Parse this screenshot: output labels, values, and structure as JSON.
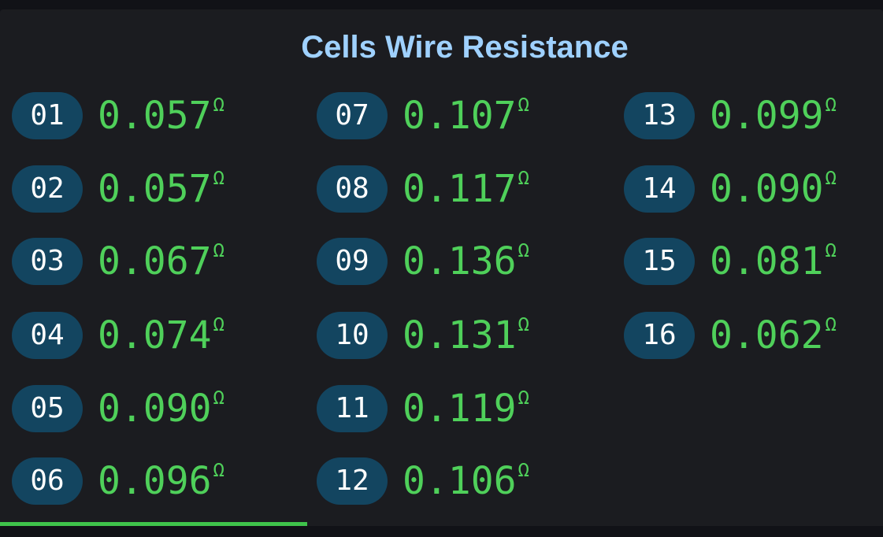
{
  "panel": {
    "title": "Cells Wire Resistance"
  },
  "unit_symbol": "Ω",
  "colors": {
    "background": "#1b1c20",
    "title": "#9fd1ff",
    "badge": "#134560",
    "value": "#4fd05a",
    "progress": "#3fc34b"
  },
  "cells": [
    {
      "id": "01",
      "value": "0.057"
    },
    {
      "id": "02",
      "value": "0.057"
    },
    {
      "id": "03",
      "value": "0.067"
    },
    {
      "id": "04",
      "value": "0.074"
    },
    {
      "id": "05",
      "value": "0.090"
    },
    {
      "id": "06",
      "value": "0.096"
    },
    {
      "id": "07",
      "value": "0.107"
    },
    {
      "id": "08",
      "value": "0.117"
    },
    {
      "id": "09",
      "value": "0.136"
    },
    {
      "id": "10",
      "value": "0.131"
    },
    {
      "id": "11",
      "value": "0.119"
    },
    {
      "id": "12",
      "value": "0.106"
    },
    {
      "id": "13",
      "value": "0.099"
    },
    {
      "id": "14",
      "value": "0.090"
    },
    {
      "id": "15",
      "value": "0.081"
    },
    {
      "id": "16",
      "value": "0.062"
    }
  ],
  "progress": {
    "fraction": 0.348
  }
}
